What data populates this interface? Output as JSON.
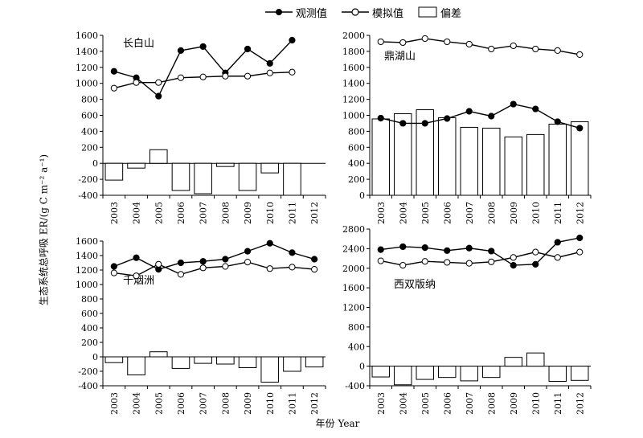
{
  "legend": {
    "observed": "观测值",
    "simulated": "模拟值",
    "bias": "偏差"
  },
  "axis": {
    "ylabel": "生态系统总呼吸 ER/(g C m⁻² a⁻¹)",
    "xlabel": "年份 Year"
  },
  "chart_data": [
    {
      "type": "line",
      "title": "长白山",
      "categories": [
        "2003",
        "2004",
        "2005",
        "2006",
        "2007",
        "2008",
        "2009",
        "2010",
        "2011",
        "2012"
      ],
      "ylim": [
        -400,
        1600
      ],
      "yticks": [
        -400,
        -200,
        0,
        200,
        400,
        600,
        800,
        1000,
        1200,
        1400,
        1600
      ],
      "series": [
        {
          "name": "观测值",
          "kind": "line-filled",
          "values": [
            1150,
            1070,
            840,
            1410,
            1460,
            1130,
            1430,
            1250,
            1540,
            null
          ]
        },
        {
          "name": "模拟值",
          "kind": "line-open",
          "values": [
            940,
            1010,
            1010,
            1070,
            1080,
            1090,
            1090,
            1130,
            1140,
            null
          ]
        },
        {
          "name": "偏差",
          "kind": "bar",
          "values": [
            -210,
            -60,
            170,
            -340,
            -380,
            -40,
            -340,
            -120,
            -400,
            null
          ]
        }
      ]
    },
    {
      "type": "line",
      "title": "鼎湖山",
      "categories": [
        "2003",
        "2004",
        "2005",
        "2006",
        "2007",
        "2008",
        "2009",
        "2010",
        "2011",
        "2012"
      ],
      "ylim": [
        0,
        2000
      ],
      "yticks": [
        0,
        200,
        400,
        600,
        800,
        1000,
        1200,
        1400,
        1600,
        1800,
        2000
      ],
      "series": [
        {
          "name": "观测值",
          "kind": "line-filled",
          "values": [
            965,
            900,
            900,
            960,
            1050,
            990,
            1140,
            1080,
            920,
            840
          ]
        },
        {
          "name": "模拟值",
          "kind": "line-open",
          "values": [
            1920,
            1910,
            1960,
            1920,
            1890,
            1830,
            1870,
            1830,
            1810,
            1760
          ]
        },
        {
          "name": "偏差",
          "kind": "bar",
          "values": [
            955,
            1020,
            1070,
            970,
            850,
            840,
            730,
            760,
            890,
            920
          ]
        }
      ]
    },
    {
      "type": "line",
      "title": "千烟洲",
      "categories": [
        "2003",
        "2004",
        "2005",
        "2006",
        "2007",
        "2008",
        "2009",
        "2010",
        "2011",
        "2012"
      ],
      "ylim": [
        -400,
        1600
      ],
      "yticks": [
        -400,
        -200,
        0,
        200,
        400,
        600,
        800,
        1000,
        1200,
        1400,
        1600
      ],
      "series": [
        {
          "name": "观测值",
          "kind": "line-filled",
          "values": [
            1250,
            1370,
            1210,
            1300,
            1320,
            1350,
            1460,
            1570,
            1440,
            1350
          ]
        },
        {
          "name": "模拟值",
          "kind": "line-open",
          "values": [
            1160,
            1120,
            1280,
            1140,
            1230,
            1250,
            1310,
            1220,
            1240,
            1210
          ]
        },
        {
          "name": "偏差",
          "kind": "bar",
          "values": [
            -80,
            -250,
            70,
            -160,
            -90,
            -100,
            -150,
            -350,
            -200,
            -140
          ]
        }
      ]
    },
    {
      "type": "line",
      "title": "西双版纳",
      "categories": [
        "2003",
        "2004",
        "2005",
        "2006",
        "2007",
        "2008",
        "2009",
        "2010",
        "2011",
        "2012"
      ],
      "ylim": [
        -400,
        2800
      ],
      "yticks": [
        -400,
        0,
        400,
        800,
        1200,
        1600,
        2000,
        2400,
        2800
      ],
      "series": [
        {
          "name": "观测值",
          "kind": "line-filled",
          "values": [
            2380,
            2440,
            2420,
            2360,
            2410,
            2350,
            2060,
            2080,
            2530,
            2620
          ]
        },
        {
          "name": "模拟值",
          "kind": "line-open",
          "values": [
            2150,
            2060,
            2140,
            2120,
            2100,
            2130,
            2220,
            2330,
            2220,
            2330
          ]
        },
        {
          "name": "偏差",
          "kind": "bar",
          "values": [
            -220,
            -380,
            -270,
            -230,
            -300,
            -230,
            180,
            270,
            -310,
            -290
          ]
        }
      ]
    }
  ]
}
